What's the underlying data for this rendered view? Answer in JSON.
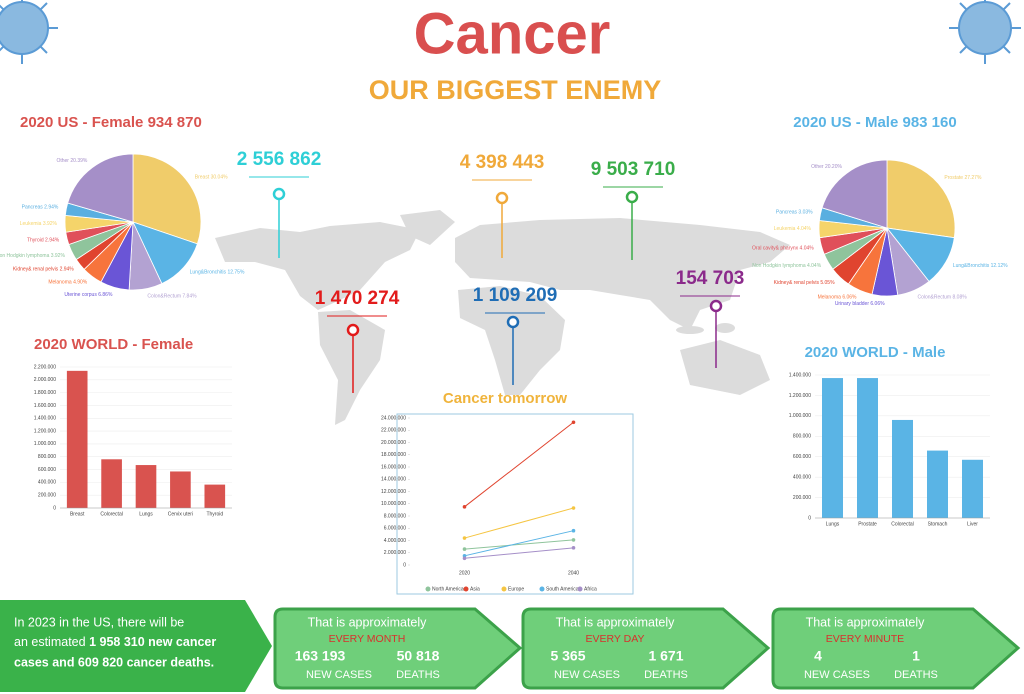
{
  "header": {
    "title": "Cancer",
    "subtitle": "OUR BIGGEST ENEMY"
  },
  "map_markers": [
    {
      "value": "2 556 862",
      "color": "#2ecfd6"
    },
    {
      "value": "4 398 443",
      "color": "#f0a93a"
    },
    {
      "value": "9 503 710",
      "color": "#3aad4a"
    },
    {
      "value": "1 470 274",
      "color": "#e21b1b"
    },
    {
      "value": "1 109 209",
      "color": "#1f6db5"
    },
    {
      "value": "154 703",
      "color": "#8b2a8b"
    }
  ],
  "chart_data": [
    {
      "type": "pie",
      "title": "2020 US - Female 934 870",
      "categories": [
        "Breast",
        "Lung&Bronchitis",
        "Colon&Rectum",
        "Uterine corpus",
        "Melanoma",
        "Kidney& renal pelvis",
        "Non Hodgkin lymphoma",
        "Thyroid",
        "Leukemia",
        "Pancreas",
        "Other"
      ],
      "values": [
        30.04,
        12.75,
        7.84,
        6.86,
        4.9,
        2.94,
        3.92,
        2.94,
        3.92,
        2.94,
        20.39
      ],
      "value_labels": [
        "30.04%",
        "12.75%",
        "7.84%",
        "6.86%",
        "4.90%",
        "2.94%",
        "3.92%",
        "2.94%",
        "3.92%",
        "2.94%",
        "20.39%"
      ],
      "colors": [
        "#f0cc6a",
        "#5ab4e5",
        "#b3a2d2",
        "#6a55d6",
        "#f7743c",
        "#e0442f",
        "#8fc49c",
        "#e0505a",
        "#f5d46a",
        "#5aafe0",
        "#a58fc8"
      ]
    },
    {
      "type": "pie",
      "title": "2020 US - Male 983 160",
      "categories": [
        "Prostate",
        "Lung&Bronchitis",
        "Colon&Rectum",
        "Urinary bladder",
        "Melanoma",
        "Kidney& renal pelvis",
        "Non Hodgkin lymphoma",
        "Oral cavity& pharynx",
        "Leukemia",
        "Pancreas",
        "Other"
      ],
      "values": [
        27.27,
        12.12,
        8.08,
        6.06,
        6.06,
        5.05,
        4.04,
        4.04,
        4.04,
        3.03,
        20.2
      ],
      "value_labels": [
        "27.27%",
        "12.12%",
        "8.08%",
        "6.06%",
        "6.06%",
        "5.05%",
        "4.04%",
        "4.04%",
        "4.04%",
        "3.03%",
        "20.20%"
      ],
      "colors": [
        "#f0cc6a",
        "#5ab4e5",
        "#b3a2d2",
        "#6a55d6",
        "#f7743c",
        "#e0442f",
        "#8fc49c",
        "#e0505a",
        "#f5d46a",
        "#5aafe0",
        "#a58fc8"
      ]
    },
    {
      "type": "bar",
      "title": "2020 WORLD - Female",
      "categories": [
        "Breast",
        "Colorectal",
        "Lungs",
        "Cervix uteri",
        "Thyroid"
      ],
      "values": [
        2140000,
        760000,
        670000,
        570000,
        365000
      ],
      "color": "#d9534f",
      "ylim": [
        0,
        2200000
      ],
      "yticks": [
        0,
        {
          "value": 200000,
          "label": "200.000"
        },
        {
          "value": 400000,
          "label": "400.000"
        },
        {
          "value": 600000,
          "label": "600.000"
        },
        {
          "value": 800000,
          "label": "800.000"
        },
        {
          "value": 1000000,
          "label": "1.000.000"
        },
        {
          "value": 1200000,
          "label": "1.200.000"
        },
        {
          "value": 1400000,
          "label": "1.400.000"
        },
        {
          "value": 1600000,
          "label": "1.600.000"
        },
        {
          "value": 1800000,
          "label": "1.800.000"
        },
        {
          "value": 2000000,
          "label": "2.000.000"
        },
        {
          "value": 2200000,
          "label": "2.200.000"
        }
      ],
      "grid": true
    },
    {
      "type": "bar",
      "title": "2020 WORLD - Male",
      "categories": [
        "Lungs",
        "Prostate",
        "Colorectal",
        "Stomach",
        "Liver"
      ],
      "values": [
        1370000,
        1370000,
        960000,
        660000,
        570000
      ],
      "color": "#5ab4e5",
      "ylim": [
        0,
        1400000
      ],
      "yticks": [
        0,
        {
          "value": 200000,
          "label": "200.000"
        },
        {
          "value": 400000,
          "label": "400.000"
        },
        {
          "value": 600000,
          "label": "600.000"
        },
        {
          "value": 800000,
          "label": "800.000"
        },
        {
          "value": 1000000,
          "label": "1.000.000"
        },
        {
          "value": 1200000,
          "label": "1.200.000"
        },
        {
          "value": 1400000,
          "label": "1.400.000"
        }
      ],
      "grid": true
    },
    {
      "type": "line",
      "title": "Cancer tomorrow",
      "categories": [
        "2020",
        "2040"
      ],
      "series": [
        {
          "name": "North America",
          "color": "#8fc49c",
          "values": [
            2600000,
            4100000
          ]
        },
        {
          "name": "Asia",
          "color": "#e0442f",
          "values": [
            9500000,
            23300000
          ]
        },
        {
          "name": "Europe",
          "color": "#f5c542",
          "values": [
            4400000,
            9300000
          ]
        },
        {
          "name": "South America",
          "color": "#5ab4e5",
          "values": [
            1500000,
            5600000
          ]
        },
        {
          "name": "Africa",
          "color": "#a58fc8",
          "values": [
            1100000,
            2800000
          ]
        }
      ],
      "ylim": [
        0,
        24000000
      ],
      "yticks": [
        0,
        {
          "value": 2000000,
          "label": "2.000.000"
        },
        {
          "value": 4000000,
          "label": "4.000.000"
        },
        {
          "value": 6000000,
          "label": "6.000.000"
        },
        {
          "value": 8000000,
          "label": "8.000.000"
        },
        {
          "value": 10000000,
          "label": "10.000.000"
        },
        {
          "value": 12000000,
          "label": "12.000.000"
        },
        {
          "value": 14000000,
          "label": "14.000.000"
        },
        {
          "value": 16000000,
          "label": "16.000.000"
        },
        {
          "value": 18000000,
          "label": "18.000.000"
        },
        {
          "value": 20000000,
          "label": "20.000.000"
        },
        {
          "value": 22000000,
          "label": "22.000.000"
        },
        {
          "value": 24000000,
          "label": "24.000.000"
        }
      ],
      "grid": false
    }
  ],
  "summary": {
    "line_1": "In 2023 in the US, there will be",
    "line_2a": "an estimated",
    "line_2b": "1 958 310 new cancer",
    "line_3": "cases and 609 820 cancer deaths."
  },
  "rates": [
    {
      "intro": "That is approximately",
      "period": "EVERY MONTH",
      "cases": "163 193",
      "deaths": "50 818",
      "cases_label": "NEW CASES",
      "deaths_label": "DEATHS"
    },
    {
      "intro": "That is approximately",
      "period": "EVERY DAY",
      "cases": "5 365",
      "deaths": "1 671",
      "cases_label": "NEW CASES",
      "deaths_label": "DEATHS"
    },
    {
      "intro": "That is approximately",
      "period": "EVERY MINUTE",
      "cases": "4",
      "deaths": "1",
      "cases_label": "NEW CASES",
      "deaths_label": "DEATHS"
    }
  ]
}
